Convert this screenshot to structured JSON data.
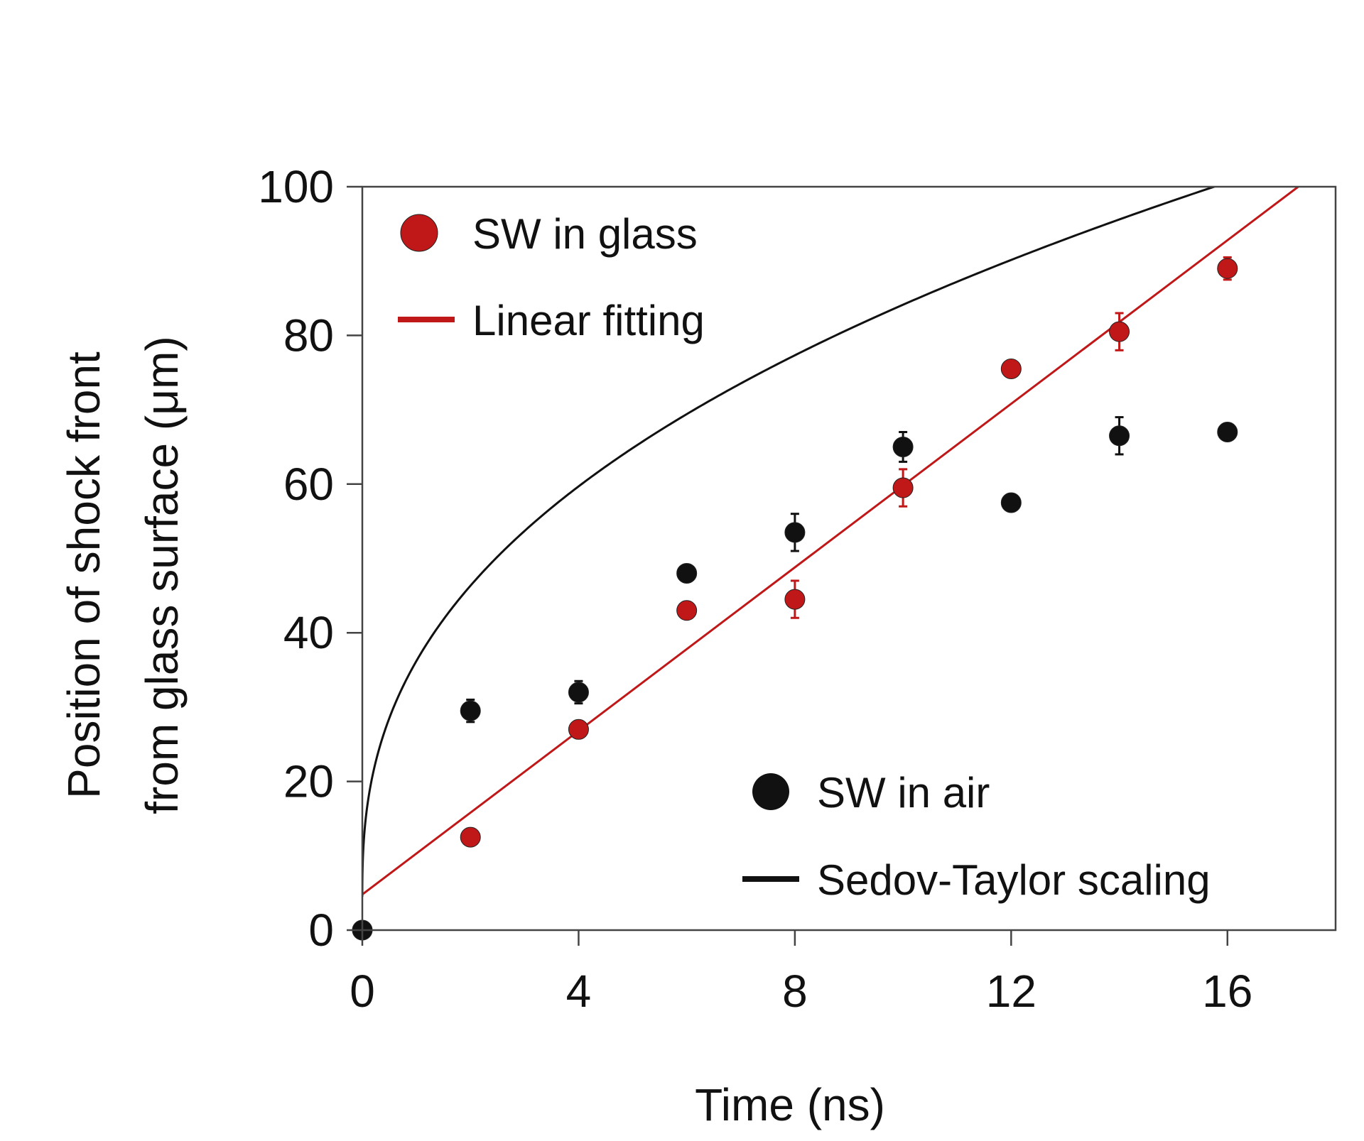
{
  "chart_data": {
    "type": "scatter",
    "title": "",
    "xlabel": "Time (ns)",
    "ylabel_line1": "Position of shock front",
    "ylabel_line2": "from glass surface (μm)",
    "xlim": [
      0,
      18
    ],
    "ylim": [
      0,
      100
    ],
    "x_ticks": [
      0,
      4,
      8,
      12,
      16
    ],
    "y_ticks": [
      0,
      20,
      40,
      60,
      80,
      100
    ],
    "grid": false,
    "series": [
      {
        "name": "SW in glass",
        "kind": "points",
        "color": "#c01818",
        "x": [
          2,
          4,
          6,
          8,
          10,
          12,
          14,
          16
        ],
        "y": [
          12.5,
          27,
          43,
          44.5,
          59.5,
          75.5,
          80.5,
          89
        ],
        "err": [
          0,
          0,
          0,
          2.5,
          2.5,
          0,
          2.5,
          1.5
        ]
      },
      {
        "name": "Linear fitting",
        "kind": "line",
        "color": "#c01818",
        "intercept": 4.8,
        "slope": 5.5
      },
      {
        "name": "SW in air",
        "kind": "points",
        "color": "#111111",
        "x": [
          0,
          2,
          4,
          6,
          8,
          10,
          12,
          14,
          16
        ],
        "y": [
          0,
          29.5,
          32,
          48,
          53.5,
          65,
          57.5,
          66.5,
          67
        ],
        "err": [
          0,
          1.5,
          1.5,
          0,
          2.5,
          2,
          0,
          2.5,
          1
        ]
      },
      {
        "name": "Sedov-Taylor scaling",
        "kind": "curve",
        "color": "#111111",
        "coefficient": 31.7,
        "exponent": 0.4,
        "offset": 4.5
      }
    ],
    "legends": [
      {
        "position": "top-left",
        "items": [
          "SW in glass",
          "Linear fitting"
        ]
      },
      {
        "position": "bottom-right",
        "items": [
          "SW in air",
          "Sedov-Taylor scaling"
        ]
      }
    ]
  }
}
